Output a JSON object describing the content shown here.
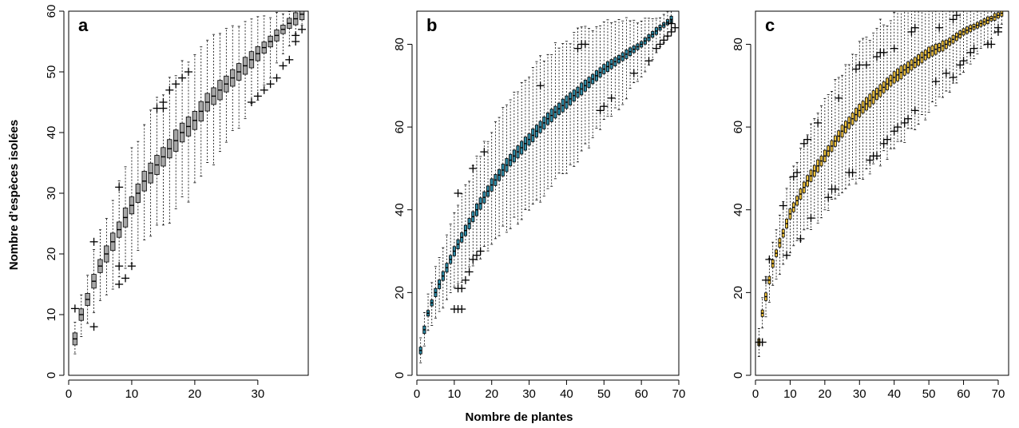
{
  "figure": {
    "ylabel": "Nombre d’espèces isolées",
    "xlabel": "Nombre de plantes"
  },
  "chart_data": [
    {
      "type": "boxplot",
      "panel": "a",
      "color": "#a6a6a6",
      "xlim": [
        0,
        38
      ],
      "ylim": [
        0,
        60
      ],
      "x_ticks": [
        0,
        10,
        20,
        30
      ],
      "y_ticks": [
        0,
        10,
        20,
        30,
        40,
        50,
        60
      ],
      "n_boxes": 37,
      "median_curve": [
        [
          1,
          6
        ],
        [
          2,
          10
        ],
        [
          3,
          12.5
        ],
        [
          4,
          15.5
        ],
        [
          5,
          18
        ],
        [
          6,
          20
        ],
        [
          8,
          24
        ],
        [
          10,
          28
        ],
        [
          12,
          32
        ],
        [
          15,
          36
        ],
        [
          18,
          40
        ],
        [
          20,
          42
        ],
        [
          22,
          45
        ],
        [
          25,
          48
        ],
        [
          28,
          51
        ],
        [
          30,
          53
        ],
        [
          33,
          56
        ],
        [
          35,
          58
        ],
        [
          37,
          59.5
        ]
      ],
      "outliers": [
        [
          1,
          11
        ],
        [
          4,
          22
        ],
        [
          4,
          8
        ],
        [
          8,
          31
        ],
        [
          8,
          15
        ],
        [
          8,
          18
        ],
        [
          9,
          16
        ],
        [
          10,
          18
        ],
        [
          14,
          44
        ],
        [
          15,
          45
        ],
        [
          15,
          44
        ],
        [
          16,
          47
        ],
        [
          17,
          48
        ],
        [
          18,
          49
        ],
        [
          19,
          50
        ],
        [
          29,
          45
        ],
        [
          30,
          46
        ],
        [
          31,
          47
        ],
        [
          32,
          48
        ],
        [
          33,
          49
        ],
        [
          34,
          51
        ],
        [
          35,
          52
        ],
        [
          36,
          55
        ],
        [
          36,
          56
        ],
        [
          37,
          57
        ]
      ]
    },
    {
      "type": "boxplot",
      "panel": "b",
      "color": "#2b8aa6",
      "xlim": [
        0,
        70
      ],
      "ylim": [
        0,
        88
      ],
      "x_ticks": [
        0,
        10,
        20,
        30,
        40,
        50,
        60,
        70
      ],
      "y_ticks": [
        0,
        20,
        40,
        60,
        80
      ],
      "n_boxes": 68,
      "median_curve": [
        [
          1,
          6
        ],
        [
          2,
          11
        ],
        [
          3,
          15
        ],
        [
          5,
          20
        ],
        [
          7,
          24
        ],
        [
          10,
          30
        ],
        [
          13,
          35
        ],
        [
          16,
          40
        ],
        [
          20,
          46
        ],
        [
          25,
          52
        ],
        [
          30,
          57
        ],
        [
          35,
          62
        ],
        [
          40,
          66
        ],
        [
          45,
          70
        ],
        [
          50,
          74
        ],
        [
          55,
          77
        ],
        [
          60,
          80
        ],
        [
          65,
          84
        ],
        [
          68,
          86
        ]
      ],
      "outliers": [
        [
          10,
          16
        ],
        [
          11,
          16
        ],
        [
          12,
          16
        ],
        [
          11,
          21
        ],
        [
          12,
          21
        ],
        [
          11,
          44
        ],
        [
          13,
          23
        ],
        [
          14,
          25
        ],
        [
          15,
          28
        ],
        [
          15,
          50
        ],
        [
          16,
          29
        ],
        [
          17,
          30
        ],
        [
          18,
          54
        ],
        [
          33,
          70
        ],
        [
          43,
          79
        ],
        [
          44,
          80
        ],
        [
          45,
          80
        ],
        [
          49,
          64
        ],
        [
          50,
          65
        ],
        [
          52,
          67
        ],
        [
          58,
          73
        ],
        [
          62,
          76
        ],
        [
          64,
          79
        ],
        [
          65,
          80
        ],
        [
          66,
          81
        ],
        [
          67,
          82
        ],
        [
          68,
          83
        ],
        [
          68,
          85
        ],
        [
          69,
          84
        ]
      ]
    },
    {
      "type": "boxplot",
      "panel": "c",
      "color": "#f0c23a",
      "xlim": [
        0,
        73
      ],
      "ylim": [
        0,
        88
      ],
      "x_ticks": [
        0,
        10,
        20,
        30,
        40,
        50,
        60,
        70
      ],
      "y_ticks": [
        0,
        20,
        40,
        60,
        80
      ],
      "n_boxes": 71,
      "median_curve": [
        [
          1,
          8
        ],
        [
          2,
          15
        ],
        [
          3,
          19
        ],
        [
          4,
          23
        ],
        [
          5,
          27
        ],
        [
          7,
          32
        ],
        [
          10,
          39
        ],
        [
          15,
          47
        ],
        [
          20,
          53
        ],
        [
          25,
          59
        ],
        [
          30,
          64
        ],
        [
          35,
          68
        ],
        [
          40,
          72
        ],
        [
          45,
          75
        ],
        [
          50,
          78
        ],
        [
          55,
          80
        ],
        [
          60,
          83
        ],
        [
          65,
          85
        ],
        [
          70,
          87
        ],
        [
          71,
          87.5
        ]
      ],
      "outliers": [
        [
          1,
          8
        ],
        [
          2,
          8
        ],
        [
          3,
          23
        ],
        [
          4,
          28
        ],
        [
          8,
          41
        ],
        [
          9,
          29
        ],
        [
          11,
          48
        ],
        [
          12,
          49
        ],
        [
          13,
          33
        ],
        [
          14,
          56
        ],
        [
          15,
          57
        ],
        [
          16,
          38
        ],
        [
          18,
          61
        ],
        [
          21,
          43
        ],
        [
          22,
          45
        ],
        [
          23,
          45
        ],
        [
          24,
          67
        ],
        [
          27,
          49
        ],
        [
          28,
          49
        ],
        [
          29,
          74
        ],
        [
          30,
          75
        ],
        [
          32,
          75
        ],
        [
          33,
          52
        ],
        [
          34,
          53
        ],
        [
          35,
          53
        ],
        [
          35,
          77
        ],
        [
          36,
          78
        ],
        [
          37,
          78
        ],
        [
          37,
          56
        ],
        [
          38,
          57
        ],
        [
          40,
          59
        ],
        [
          40,
          79
        ],
        [
          41,
          60
        ],
        [
          43,
          61
        ],
        [
          44,
          62
        ],
        [
          45,
          83
        ],
        [
          46,
          84
        ],
        [
          46,
          64
        ],
        [
          52,
          71
        ],
        [
          53,
          84
        ],
        [
          55,
          73
        ],
        [
          57,
          72
        ],
        [
          57,
          86
        ],
        [
          58,
          87
        ],
        [
          59,
          75
        ],
        [
          60,
          76
        ],
        [
          62,
          78
        ],
        [
          63,
          79
        ],
        [
          67,
          80
        ],
        [
          68,
          80
        ],
        [
          70,
          83
        ],
        [
          70,
          84
        ]
      ]
    }
  ]
}
